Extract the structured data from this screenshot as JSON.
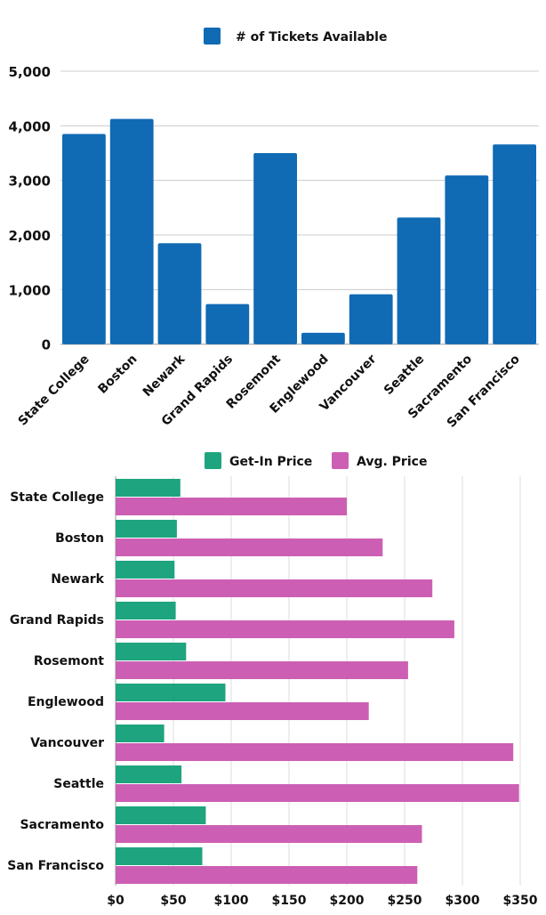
{
  "chart_data": [
    {
      "type": "bar",
      "legend": {
        "placement": "top",
        "entries": [
          "# of Tickets Available"
        ]
      },
      "categories": [
        "State College",
        "Boston",
        "Newark",
        "Grand Rapids",
        "Rosemont",
        "Englewood",
        "Vancouver",
        "Seattle",
        "Sacramento",
        "San Francisco"
      ],
      "series": [
        {
          "name": "# of Tickets Available",
          "color": "#106ab4",
          "values": [
            3850,
            4125,
            1850,
            735,
            3500,
            210,
            915,
            2320,
            3090,
            3660
          ]
        }
      ],
      "ylim": [
        0,
        5000
      ],
      "yticks": [
        "0",
        "1,000",
        "2,000",
        "3,000",
        "4,000",
        "5,000"
      ],
      "grid": true
    },
    {
      "type": "bar",
      "orientation": "horizontal",
      "legend": {
        "placement": "top",
        "entries": [
          "Get-In Price",
          "Avg. Price"
        ]
      },
      "categories": [
        "State College",
        "Boston",
        "Newark",
        "Grand Rapids",
        "Rosemont",
        "Englewood",
        "Vancouver",
        "Seattle",
        "Sacramento",
        "San Francisco"
      ],
      "series": [
        {
          "name": "Get-In Price",
          "color": "#1ea47e",
          "values": [
            56,
            53,
            51,
            52,
            61,
            95,
            42,
            57,
            78,
            75
          ]
        },
        {
          "name": "Avg. Price",
          "color": "#cc5fb4",
          "values": [
            200,
            231,
            274,
            293,
            253,
            219,
            344,
            349,
            265,
            261
          ]
        }
      ],
      "xlim": [
        0,
        350
      ],
      "xticks": [
        "$0",
        "$50",
        "$100",
        "$150",
        "$200",
        "$250",
        "$300",
        "$350"
      ],
      "grid": true
    }
  ]
}
